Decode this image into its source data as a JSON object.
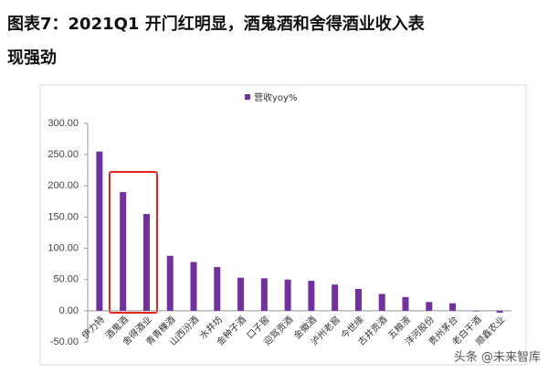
{
  "title_lines": [
    "图表7：2021Q1 开门红明显，酒鬼酒和舍得酒业收入表",
    "现强劲"
  ],
  "watermark": "头条 @未来智库",
  "chart_data": {
    "type": "bar",
    "categories": [
      "伊力特",
      "酒鬼酒",
      "舍得酒业",
      "青青稞酒",
      "山西汾酒",
      "水井坊",
      "金种子酒",
      "口子窖",
      "迎驾贡酒",
      "金徽酒",
      "泸州老窖",
      "今世缘",
      "古井贡酒",
      "五粮液",
      "洋河股份",
      "贵州茅台",
      "老白干酒",
      "顺鑫农业"
    ],
    "series": [
      {
        "name": "营收yoy%",
        "color": "#7030a0",
        "values": [
          255,
          190,
          155,
          88,
          78,
          70,
          53,
          52,
          50,
          48,
          42,
          35,
          27,
          22,
          14,
          12,
          -1,
          -3
        ]
      }
    ],
    "ylim": [
      -50,
      300
    ],
    "yticks": [
      {
        "value": -50,
        "label": "-50.00"
      },
      {
        "value": 0,
        "label": "0.00"
      },
      {
        "value": 50,
        "label": "50.00"
      },
      {
        "value": 100,
        "label": "100.00"
      },
      {
        "value": 150,
        "label": "150.00"
      },
      {
        "value": 200,
        "label": "200.00"
      },
      {
        "value": 250,
        "label": "250.00"
      },
      {
        "value": 300,
        "label": "300.00"
      }
    ],
    "legend": "top"
  }
}
